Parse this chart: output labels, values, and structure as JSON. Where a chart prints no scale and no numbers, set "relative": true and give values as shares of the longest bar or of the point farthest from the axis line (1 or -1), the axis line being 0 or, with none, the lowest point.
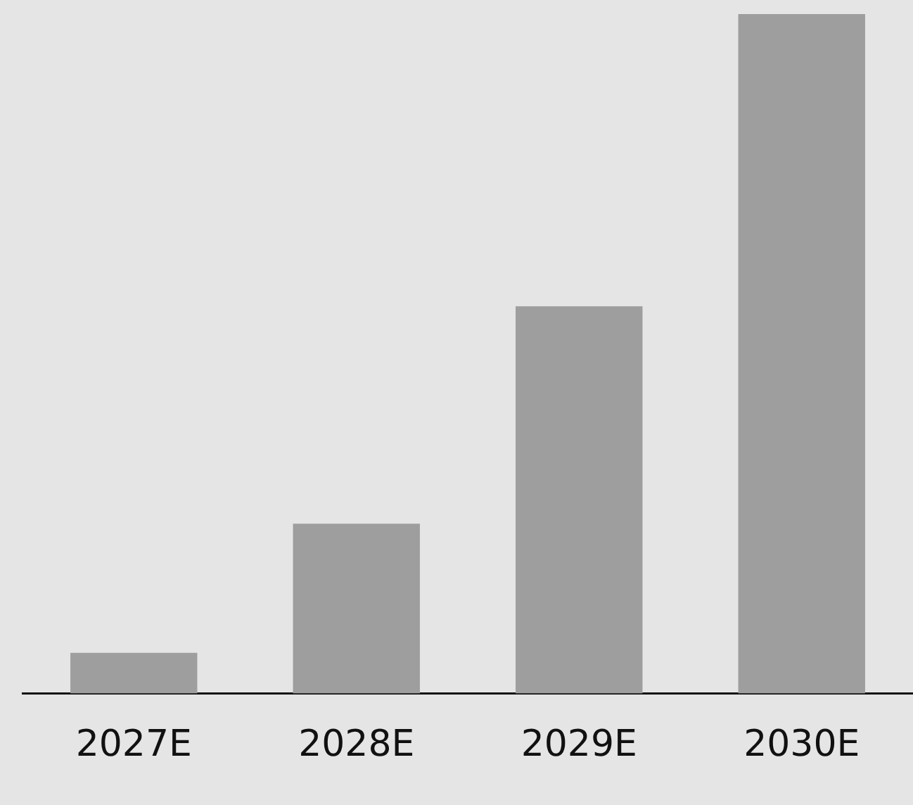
{
  "chart_data": {
    "type": "bar",
    "relative": true,
    "categories": [
      "2027E",
      "2028E",
      "2029E",
      "2030E"
    ],
    "values": [
      0.06,
      0.25,
      0.57,
      1
    ],
    "color": "#9e9e9e",
    "grid": false,
    "legend": false
  }
}
